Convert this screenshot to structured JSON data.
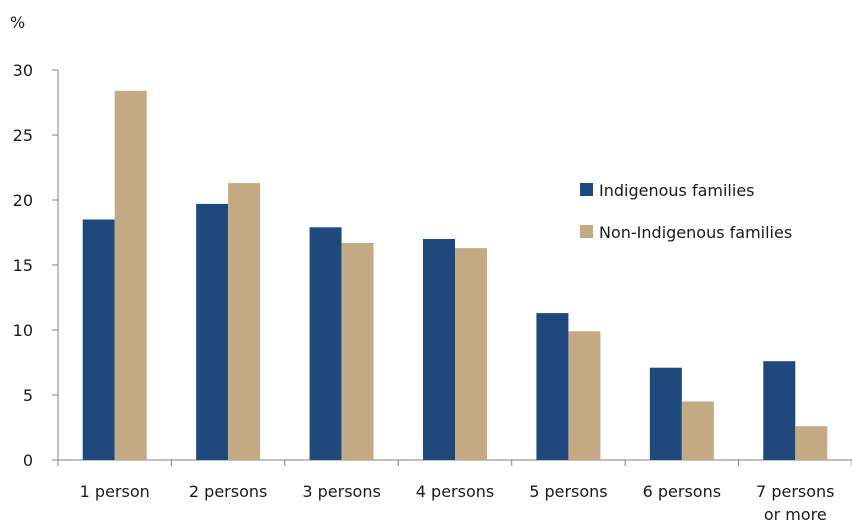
{
  "chart_data": {
    "type": "bar",
    "ylabel": "%",
    "ylim": [
      0,
      30
    ],
    "yticks": [
      0,
      5,
      10,
      15,
      20,
      25,
      30
    ],
    "categories": [
      "1 person",
      "2 persons",
      "3 persons",
      "4 persons",
      "5 persons",
      "6 persons",
      "7 persons or more"
    ],
    "category_lines": [
      [
        "1 person"
      ],
      [
        "2 persons"
      ],
      [
        "3 persons"
      ],
      [
        "4 persons"
      ],
      [
        "5 persons"
      ],
      [
        "6 persons"
      ],
      [
        "7 persons",
        "or more"
      ]
    ],
    "series": [
      {
        "name": "Indigenous families",
        "color": "#1f497d",
        "values": [
          18.5,
          19.7,
          17.9,
          17.0,
          11.3,
          7.1,
          7.6
        ]
      },
      {
        "name": "Non-Indigenous families",
        "color": "#c4aa84",
        "values": [
          28.4,
          21.3,
          16.7,
          16.3,
          9.9,
          4.5,
          2.6
        ]
      }
    ],
    "legend_position": "right",
    "grid": false
  }
}
